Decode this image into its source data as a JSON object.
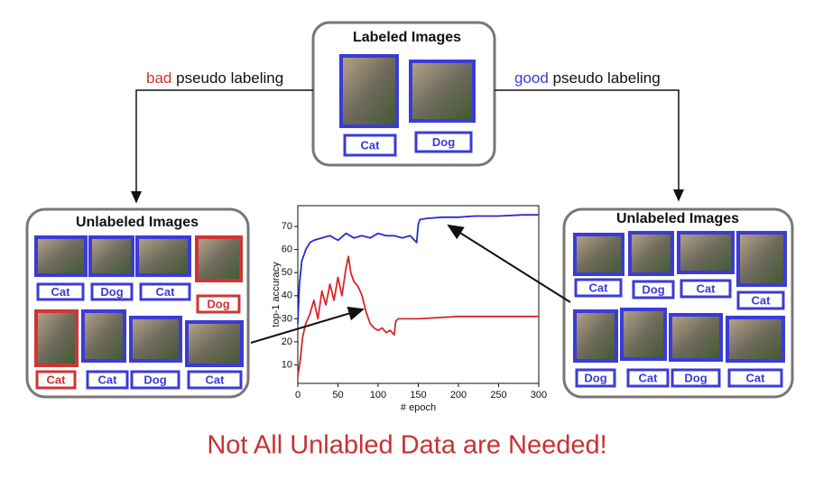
{
  "left_caption": {
    "bad": "bad",
    "text": "pseudo labeling"
  },
  "right_caption": {
    "good": "good",
    "text": "pseudo labeling"
  },
  "labeled_box": {
    "title": "Labeled Images",
    "items": [
      {
        "label": "Cat",
        "color": "#3b3bd6"
      },
      {
        "label": "Dog",
        "color": "#3b3bd6"
      }
    ]
  },
  "left_box": {
    "title": "Unlabeled Images",
    "items": [
      {
        "label": "Cat",
        "color": "#3b3bd6"
      },
      {
        "label": "Dog",
        "color": "#3b3bd6"
      },
      {
        "label": "Cat",
        "color": "#3b3bd6"
      },
      {
        "label": "Dog",
        "color": "#d03434"
      },
      {
        "label": "Cat",
        "color": "#d03434"
      },
      {
        "label": "Cat",
        "color": "#3b3bd6"
      },
      {
        "label": "Dog",
        "color": "#3b3bd6"
      },
      {
        "label": "Cat",
        "color": "#3b3bd6"
      }
    ]
  },
  "right_box": {
    "title": "Unlabeled Images",
    "items": [
      {
        "label": "Cat",
        "color": "#3b3bd6"
      },
      {
        "label": "Dog",
        "color": "#3b3bd6"
      },
      {
        "label": "Cat",
        "color": "#3b3bd6"
      },
      {
        "label": "Cat",
        "color": "#3b3bd6"
      },
      {
        "label": "Dog",
        "color": "#3b3bd6"
      },
      {
        "label": "Cat",
        "color": "#3b3bd6"
      },
      {
        "label": "Dog",
        "color": "#3b3bd6"
      },
      {
        "label": "Cat",
        "color": "#3b3bd6"
      }
    ]
  },
  "chart_data": {
    "type": "line",
    "x_label": "# epoch",
    "y_label": "top-1 accuracy",
    "xlim": [
      0,
      300
    ],
    "ylim": [
      2,
      79
    ],
    "xticks": [
      0,
      50,
      100,
      150,
      200,
      250,
      300
    ],
    "yticks": [
      10,
      20,
      30,
      40,
      50,
      60,
      70
    ],
    "series": [
      {
        "name": "good",
        "color": "#2a2ad0",
        "x": [
          0,
          2,
          5,
          10,
          15,
          20,
          30,
          40,
          50,
          60,
          70,
          80,
          90,
          100,
          110,
          120,
          130,
          140,
          148,
          150,
          152,
          160,
          180,
          200,
          220,
          250,
          280,
          300
        ],
        "values": [
          28,
          45,
          55,
          60,
          63,
          64,
          65,
          66,
          64,
          67,
          65,
          66,
          65,
          67,
          66,
          66,
          65,
          66,
          63,
          71,
          73,
          73.5,
          74,
          74,
          74.5,
          74.5,
          75,
          75
        ]
      },
      {
        "name": "bad",
        "color": "#d62728",
        "x": [
          0,
          3,
          6,
          10,
          15,
          20,
          25,
          30,
          35,
          40,
          45,
          50,
          55,
          60,
          63,
          66,
          70,
          75,
          80,
          85,
          90,
          95,
          100,
          105,
          110,
          115,
          120,
          122,
          125,
          150,
          200,
          250,
          300
        ],
        "values": [
          5,
          12,
          22,
          28,
          32,
          38,
          30,
          42,
          36,
          45,
          38,
          48,
          40,
          52,
          57,
          50,
          46,
          44,
          40,
          33,
          28,
          26,
          25,
          26,
          24,
          25,
          23,
          29,
          30,
          30,
          31,
          31,
          31
        ]
      }
    ]
  },
  "footer": "Not All Unlabled Data are Needed!"
}
